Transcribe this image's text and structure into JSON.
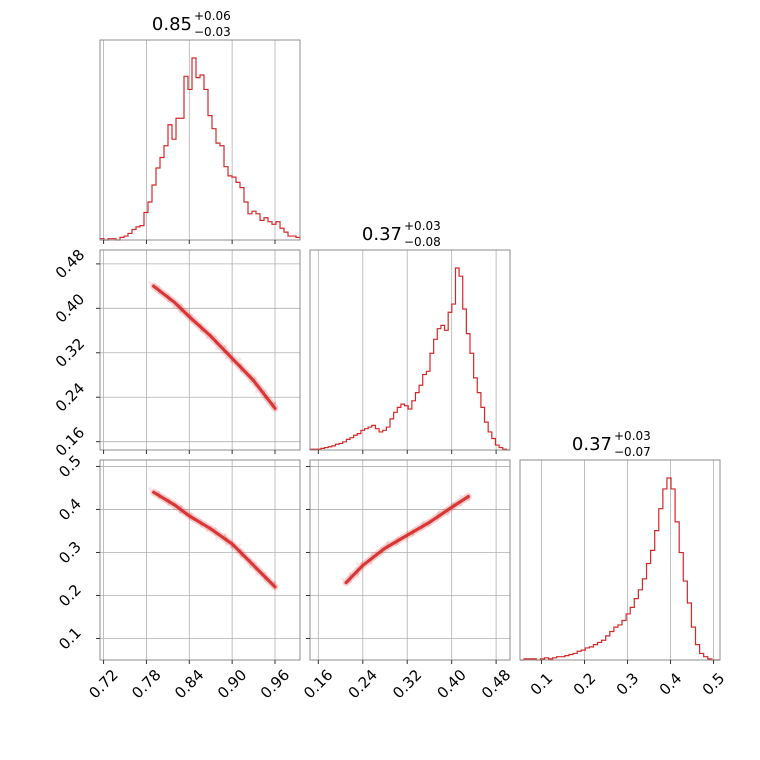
{
  "chart_data": {
    "type": "corner",
    "color": "#d62728",
    "parameters": [
      {
        "title": {
          "median": "0.85",
          "plus": "+0.06",
          "minus": "−0.03"
        },
        "range": [
          0.715,
          0.995
        ],
        "ticks": [
          "0.72",
          "0.78",
          "0.84",
          "0.90",
          "0.96"
        ],
        "tick_values": [
          0.72,
          0.78,
          0.84,
          0.9,
          0.96
        ],
        "histogram": [
          1,
          0,
          1,
          1,
          0,
          2,
          3,
          5,
          8,
          10,
          11,
          21,
          29,
          42,
          55,
          63,
          72,
          88,
          77,
          93,
          93,
          125,
          115,
          139,
          124,
          126,
          115,
          95,
          85,
          74,
          72,
          56,
          49,
          48,
          44,
          40,
          29,
          20,
          22,
          20,
          15,
          17,
          14,
          12,
          14,
          9,
          6,
          3,
          3,
          2
        ]
      },
      {
        "title": {
          "median": "0.37",
          "plus": "+0.03",
          "minus": "−0.08"
        },
        "range": [
          0.145,
          0.505
        ],
        "ticks": [
          "0.16",
          "0.24",
          "0.32",
          "0.40",
          "0.48"
        ],
        "tick_values": [
          0.16,
          0.24,
          0.32,
          0.4,
          0.48
        ],
        "histogram": [
          1,
          1,
          1,
          2,
          3,
          4,
          5,
          7,
          8,
          10,
          13,
          15,
          18,
          20,
          24,
          26,
          28,
          30,
          26,
          22,
          24,
          28,
          38,
          46,
          52,
          56,
          54,
          50,
          60,
          70,
          79,
          92,
          96,
          118,
          135,
          148,
          152,
          146,
          168,
          178,
          222,
          212,
          172,
          142,
          118,
          88,
          70,
          52,
          34,
          22,
          14,
          6,
          3,
          1,
          0
        ]
      },
      {
        "title": {
          "median": "0.37",
          "plus": "+0.03",
          "minus": "−0.07"
        },
        "range": [
          0.05,
          0.515
        ],
        "ticks": [
          "0.1",
          "0.2",
          "0.3",
          "0.4",
          "0.5"
        ],
        "tick_values": [
          0.1,
          0.2,
          0.3,
          0.4,
          0.5
        ],
        "histogram": [
          0,
          1,
          1,
          1,
          0,
          1,
          2,
          1,
          2,
          3,
          3,
          4,
          5,
          6,
          8,
          9,
          11,
          12,
          14,
          16,
          18,
          22,
          26,
          30,
          32,
          36,
          42,
          48,
          56,
          64,
          74,
          88,
          100,
          118,
          138,
          156,
          166,
          156,
          126,
          98,
          72,
          52,
          30,
          14,
          6,
          3,
          1,
          0,
          0
        ]
      }
    ],
    "pair_curves": {
      "0_1": [
        [
          0.79,
          0.44
        ],
        [
          0.82,
          0.41
        ],
        [
          0.84,
          0.385
        ],
        [
          0.87,
          0.35
        ],
        [
          0.9,
          0.31
        ],
        [
          0.93,
          0.27
        ],
        [
          0.96,
          0.22
        ]
      ],
      "0_2": [
        [
          0.79,
          0.44
        ],
        [
          0.82,
          0.41
        ],
        [
          0.84,
          0.385
        ],
        [
          0.87,
          0.355
        ],
        [
          0.9,
          0.32
        ],
        [
          0.93,
          0.27
        ],
        [
          0.96,
          0.22
        ]
      ],
      "1_2": [
        [
          0.21,
          0.23
        ],
        [
          0.24,
          0.27
        ],
        [
          0.28,
          0.31
        ],
        [
          0.32,
          0.34
        ],
        [
          0.36,
          0.37
        ],
        [
          0.4,
          0.405
        ],
        [
          0.43,
          0.43
        ]
      ]
    }
  }
}
